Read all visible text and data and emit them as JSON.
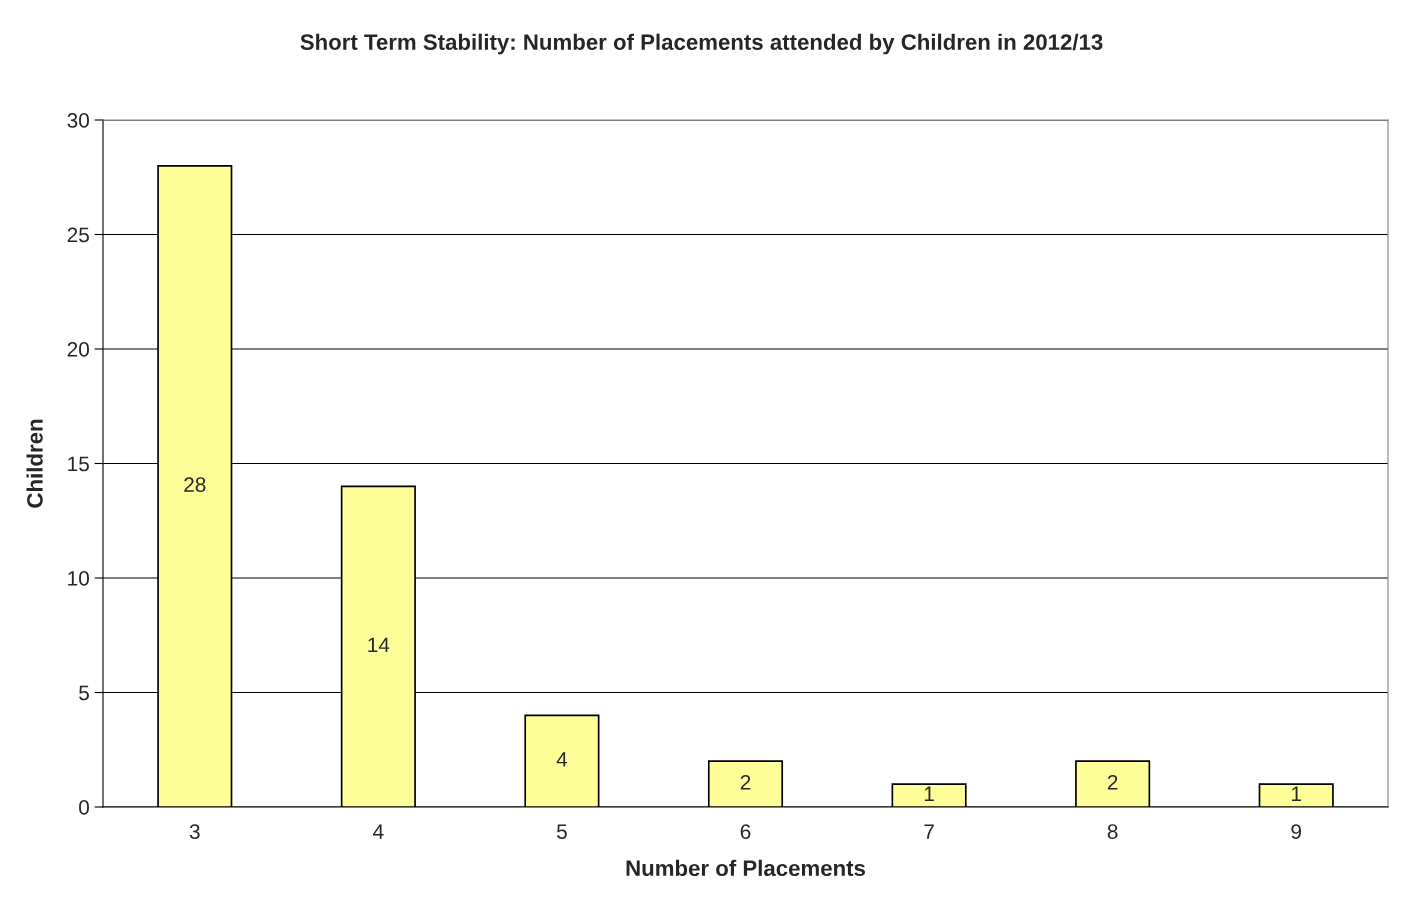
{
  "chart_data": {
    "type": "bar",
    "title": "Short Term Stability: Number of Placements attended by Children in 2012/13",
    "xlabel": "Number of Placements",
    "ylabel": "Children",
    "categories": [
      "3",
      "4",
      "5",
      "6",
      "7",
      "8",
      "9"
    ],
    "values": [
      28,
      14,
      4,
      2,
      1,
      2,
      1
    ],
    "color": "#ffff99",
    "ylim": [
      0,
      30
    ],
    "yticks": [
      0,
      5,
      10,
      15,
      20,
      25,
      30
    ],
    "grid": "y",
    "data_labels": true
  }
}
